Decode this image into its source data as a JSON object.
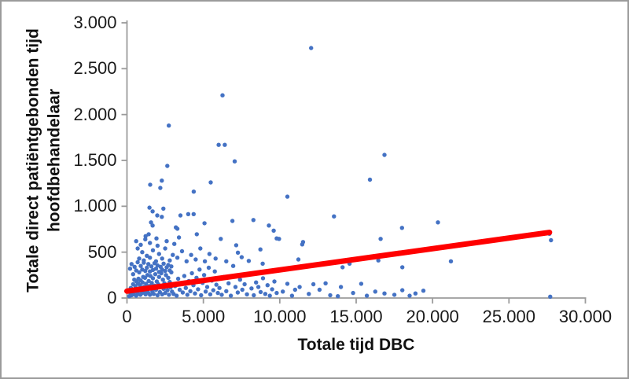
{
  "chart_data": {
    "type": "scatter",
    "title": "",
    "xlabel": "Totale tijd DBC",
    "ylabel": "Totale direct patiëntgebonden tijd hoofdbehandelaar",
    "ylabel_line1": "Totale direct patiëntgebonden tijd",
    "ylabel_line2": "hoofdbehandelaar",
    "xlim": [
      0,
      30000
    ],
    "ylim": [
      0,
      3000
    ],
    "grid": false,
    "legend": "none",
    "x_tick_values": [
      0,
      5000,
      10000,
      15000,
      20000,
      25000,
      30000
    ],
    "x_tick_labels": [
      "0",
      "5.000",
      "10.000",
      "15.000",
      "20.000",
      "25.000",
      "30.000"
    ],
    "y_tick_values": [
      0,
      500,
      1000,
      1500,
      2000,
      2500,
      3000
    ],
    "y_tick_labels": [
      "0",
      "500",
      "1.000",
      "1.500",
      "2.000",
      "2.500",
      "3.000"
    ],
    "marker_color": "#4472C4",
    "trend_color": "#FF0000",
    "axis_color": "#9b9b9b",
    "text_color": "#1a1a1a",
    "border_color": "#9b9b9b",
    "trendline": {
      "x1": 0,
      "y1": 75,
      "x2": 27650,
      "y2": 715
    },
    "points": [
      [
        12050,
        2725
      ],
      [
        6250,
        2210
      ],
      [
        2740,
        1880
      ],
      [
        6000,
        1670
      ],
      [
        6400,
        1670
      ],
      [
        7050,
        1490
      ],
      [
        2640,
        1440
      ],
      [
        16850,
        1560
      ],
      [
        15900,
        1290
      ],
      [
        1520,
        1235
      ],
      [
        2180,
        1200
      ],
      [
        2280,
        1280
      ],
      [
        5480,
        1260
      ],
      [
        4370,
        1160
      ],
      [
        10500,
        1105
      ],
      [
        18000,
        765
      ],
      [
        20350,
        825
      ],
      [
        16600,
        645
      ],
      [
        27650,
        700
      ],
      [
        27750,
        630
      ],
      [
        1470,
        985
      ],
      [
        1675,
        945
      ],
      [
        1980,
        900
      ],
      [
        2385,
        975
      ],
      [
        2280,
        885
      ],
      [
        3500,
        900
      ],
      [
        4010,
        915
      ],
      [
        4365,
        915
      ],
      [
        13550,
        890
      ],
      [
        6900,
        840
      ],
      [
        8275,
        850
      ],
      [
        5075,
        815
      ],
      [
        1575,
        825
      ],
      [
        1675,
        790
      ],
      [
        9290,
        790
      ],
      [
        9600,
        735
      ],
      [
        1420,
        695
      ],
      [
        1220,
        675
      ],
      [
        1930,
        650
      ],
      [
        3200,
        770
      ],
      [
        3300,
        755
      ],
      [
        3400,
        660
      ],
      [
        4570,
        695
      ],
      [
        6140,
        645
      ],
      [
        9800,
        650
      ],
      [
        11520,
        610
      ],
      [
        7150,
        575
      ],
      [
        9950,
        645
      ],
      [
        11470,
        585
      ],
      [
        600,
        620
      ],
      [
        900,
        580
      ],
      [
        1200,
        640
      ],
      [
        1500,
        600
      ],
      [
        2000,
        570
      ],
      [
        2600,
        620
      ],
      [
        3100,
        590
      ],
      [
        700,
        540
      ],
      [
        1000,
        500
      ],
      [
        1300,
        460
      ],
      [
        1700,
        520
      ],
      [
        2100,
        480
      ],
      [
        2500,
        540
      ],
      [
        3000,
        470
      ],
      [
        3600,
        510
      ],
      [
        4200,
        470
      ],
      [
        4800,
        540
      ],
      [
        5400,
        480
      ],
      [
        800,
        430
      ],
      [
        1100,
        410
      ],
      [
        1500,
        440
      ],
      [
        1900,
        400
      ],
      [
        2300,
        430
      ],
      [
        2800,
        410
      ],
      [
        3300,
        440
      ],
      [
        3900,
        400
      ],
      [
        4500,
        420
      ],
      [
        5100,
        400
      ],
      [
        5800,
        430
      ],
      [
        6500,
        400
      ],
      [
        7260,
        495
      ],
      [
        7510,
        445
      ],
      [
        8730,
        530
      ],
      [
        6950,
        350
      ],
      [
        7970,
        405
      ],
      [
        8880,
        375
      ],
      [
        11220,
        420
      ],
      [
        14110,
        335
      ],
      [
        14570,
        375
      ],
      [
        16450,
        410
      ],
      [
        18020,
        335
      ],
      [
        21200,
        400
      ],
      [
        150,
        20
      ],
      [
        200,
        60
      ],
      [
        250,
        110
      ],
      [
        300,
        30
      ],
      [
        350,
        90
      ],
      [
        400,
        150
      ],
      [
        420,
        40
      ],
      [
        480,
        200
      ],
      [
        500,
        70
      ],
      [
        550,
        130
      ],
      [
        600,
        25
      ],
      [
        620,
        180
      ],
      [
        650,
        95
      ],
      [
        700,
        45
      ],
      [
        720,
        160
      ],
      [
        750,
        210
      ],
      [
        800,
        80
      ],
      [
        850,
        140
      ],
      [
        880,
        35
      ],
      [
        900,
        190
      ],
      [
        950,
        100
      ],
      [
        1000,
        55
      ],
      [
        1020,
        170
      ],
      [
        1060,
        230
      ],
      [
        1100,
        120
      ],
      [
        1150,
        75
      ],
      [
        1180,
        220
      ],
      [
        1220,
        40
      ],
      [
        1250,
        155
      ],
      [
        1300,
        95
      ],
      [
        1340,
        250
      ],
      [
        1380,
        60
      ],
      [
        1420,
        185
      ],
      [
        1460,
        130
      ],
      [
        1500,
        35
      ],
      [
        1540,
        240
      ],
      [
        1580,
        105
      ],
      [
        1620,
        165
      ],
      [
        1660,
        70
      ],
      [
        1700,
        215
      ],
      [
        1750,
        45
      ],
      [
        1800,
        135
      ],
      [
        1850,
        260
      ],
      [
        1900,
        90
      ],
      [
        1950,
        180
      ],
      [
        2000,
        30
      ],
      [
        2050,
        150
      ],
      [
        2100,
        230
      ],
      [
        2150,
        65
      ],
      [
        2200,
        120
      ],
      [
        2250,
        270
      ],
      [
        2300,
        40
      ],
      [
        2350,
        200
      ],
      [
        2400,
        100
      ],
      [
        2450,
        160
      ],
      [
        2500,
        55
      ],
      [
        2550,
        250
      ],
      [
        2600,
        140
      ],
      [
        2650,
        85
      ],
      [
        2700,
        220
      ],
      [
        2750,
        35
      ],
      [
        2800,
        175
      ],
      [
        2850,
        115
      ],
      [
        2900,
        280
      ],
      [
        2950,
        70
      ],
      [
        200,
        320
      ],
      [
        300,
        370
      ],
      [
        400,
        260
      ],
      [
        500,
        340
      ],
      [
        600,
        300
      ],
      [
        700,
        390
      ],
      [
        800,
        280
      ],
      [
        900,
        350
      ],
      [
        1000,
        310
      ],
      [
        1100,
        385
      ],
      [
        1200,
        295
      ],
      [
        1300,
        330
      ],
      [
        1400,
        370
      ],
      [
        1500,
        290
      ],
      [
        1600,
        345
      ],
      [
        1700,
        305
      ],
      [
        1800,
        380
      ],
      [
        1900,
        320
      ],
      [
        2000,
        355
      ],
      [
        2100,
        285
      ],
      [
        2200,
        340
      ],
      [
        2300,
        310
      ],
      [
        2400,
        375
      ],
      [
        2500,
        295
      ],
      [
        2600,
        335
      ],
      [
        2700,
        360
      ],
      [
        2800,
        300
      ],
      [
        2900,
        345
      ],
      [
        3050,
        45
      ],
      [
        3150,
        130
      ],
      [
        3250,
        25
      ],
      [
        3350,
        210
      ],
      [
        3450,
        90
      ],
      [
        3550,
        160
      ],
      [
        3650,
        60
      ],
      [
        3750,
        240
      ],
      [
        3850,
        110
      ],
      [
        3950,
        35
      ],
      [
        4050,
        185
      ],
      [
        4150,
        75
      ],
      [
        4250,
        270
      ],
      [
        4350,
        140
      ],
      [
        4450,
        50
      ],
      [
        4550,
        220
      ],
      [
        4650,
        95
      ],
      [
        4750,
        310
      ],
      [
        4850,
        30
      ],
      [
        4950,
        165
      ],
      [
        5050,
        250
      ],
      [
        5150,
        70
      ],
      [
        5250,
        120
      ],
      [
        5350,
        330
      ],
      [
        5450,
        40
      ],
      [
        5550,
        190
      ],
      [
        5650,
        85
      ],
      [
        5750,
        290
      ],
      [
        5850,
        145
      ],
      [
        5950,
        55
      ],
      [
        6050,
        110
      ],
      [
        6200,
        35
      ],
      [
        6350,
        230
      ],
      [
        6500,
        75
      ],
      [
        6650,
        160
      ],
      [
        6800,
        25
      ],
      [
        7100,
        120
      ],
      [
        7250,
        60
      ],
      [
        7400,
        200
      ],
      [
        7550,
        90
      ],
      [
        7700,
        150
      ],
      [
        7850,
        40
      ],
      [
        8000,
        260
      ],
      [
        8150,
        105
      ],
      [
        8300,
        30
      ],
      [
        8450,
        170
      ],
      [
        8600,
        120
      ],
      [
        8750,
        65
      ],
      [
        8900,
        215
      ],
      [
        9050,
        45
      ],
      [
        9200,
        140
      ],
      [
        9350,
        25
      ],
      [
        9500,
        95
      ],
      [
        9650,
        180
      ],
      [
        9800,
        55
      ],
      [
        10200,
        70
      ],
      [
        10500,
        155
      ],
      [
        10800,
        25
      ],
      [
        11000,
        90
      ],
      [
        11300,
        120
      ],
      [
        11900,
        45
      ],
      [
        12200,
        150
      ],
      [
        12600,
        90
      ],
      [
        13000,
        160
      ],
      [
        13300,
        30
      ],
      [
        13800,
        20
      ],
      [
        14000,
        120
      ],
      [
        14800,
        55
      ],
      [
        15330,
        155
      ],
      [
        15700,
        25
      ],
      [
        16250,
        70
      ],
      [
        16850,
        50
      ],
      [
        17500,
        35
      ],
      [
        18020,
        85
      ],
      [
        18500,
        25
      ],
      [
        18880,
        50
      ],
      [
        19400,
        80
      ],
      [
        27700,
        15
      ]
    ]
  }
}
